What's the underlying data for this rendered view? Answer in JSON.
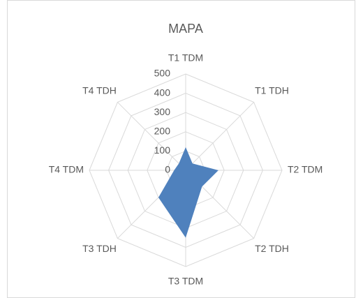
{
  "chart_data": {
    "type": "radar",
    "title": "MAPA",
    "categories": [
      "T1 TDM",
      "T1 TDH",
      "T2 TDM",
      "T2 TDH",
      "T3 TDM",
      "T3 TDH",
      "T4 TDM",
      "T4 TDH"
    ],
    "values": [
      120,
      50,
      170,
      120,
      350,
      200,
      60,
      50
    ],
    "color": "#4f81bd",
    "ylim": [
      0,
      500
    ],
    "yticks": [
      0,
      100,
      200,
      300,
      400,
      500
    ],
    "grid": true
  }
}
